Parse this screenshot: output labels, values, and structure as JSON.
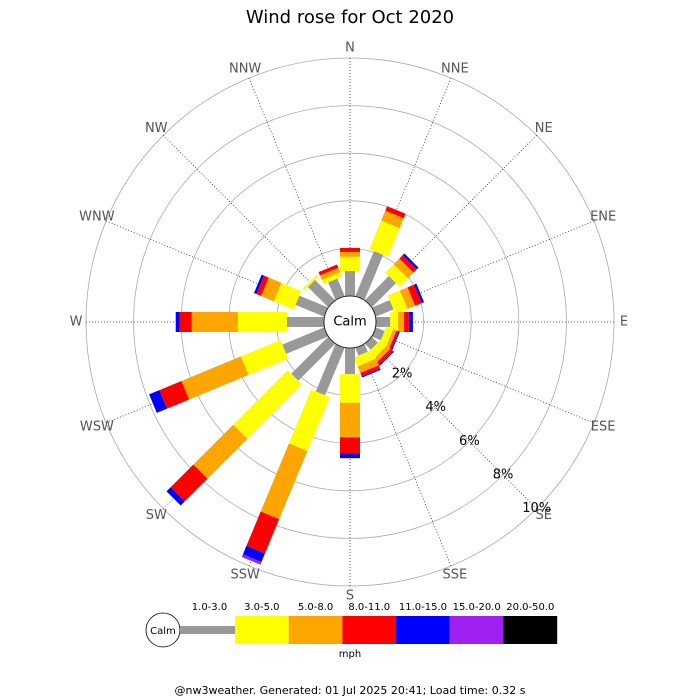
{
  "chart_data": {
    "type": "windrose",
    "title": "Wind rose for Oct 2020",
    "categories": [
      "N",
      "NNE",
      "NE",
      "ENE",
      "E",
      "ESE",
      "SE",
      "SSE",
      "S",
      "SSW",
      "SW",
      "WSW",
      "W",
      "WNW",
      "NW",
      "NNW"
    ],
    "calm_label": "Calm",
    "units": "mph",
    "footer": "@nw3weather. Generated: 01 Jul 2025 20:41; Load time: 0.32 s",
    "rlim": [
      0,
      10
    ],
    "rticks": [
      {
        "value": 2,
        "label": "2%"
      },
      {
        "value": 4,
        "label": "4%"
      },
      {
        "value": 6,
        "label": "6%"
      },
      {
        "value": 8,
        "label": "8%"
      },
      {
        "value": 10,
        "label": "10%"
      }
    ],
    "series": [
      {
        "name": "1.0-3.0",
        "color": "#999999",
        "values": [
          1.05,
          2.05,
          1.43,
          0.8,
          0.6,
          0.4,
          0.35,
          0.35,
          1.1,
          2.15,
          2.19,
          1.9,
          1.56,
          1.3,
          1.2,
          0.8
        ]
      },
      {
        "name": "3.0-5.0",
        "color": "#ffff00",
        "values": [
          0.6,
          1.3,
          0.5,
          0.55,
          0.33,
          0.3,
          0.35,
          0.4,
          1.2,
          2.45,
          3.24,
          1.8,
          2.06,
          0.9,
          0.1,
          0.2
        ]
      },
      {
        "name": "5.0-8.0",
        "color": "#ffa500",
        "values": [
          0.2,
          0.45,
          0.33,
          0.35,
          0.25,
          0.15,
          0.2,
          0.3,
          1.45,
          3.1,
          2.37,
          2.7,
          1.94,
          0.58,
          0,
          0.2
        ]
      },
      {
        "name": "8.0-11.0",
        "color": "#ff0000",
        "values": [
          0.17,
          0.2,
          0.2,
          0.3,
          0.2,
          0.1,
          0.15,
          0.15,
          0.67,
          1.56,
          1.34,
          1.0,
          0.5,
          0.21,
          0,
          0.15
        ]
      },
      {
        "name": "11.0-15.0",
        "color": "#0000ff",
        "values": [
          0,
          0,
          0.1,
          0.1,
          0.17,
          0.05,
          0.05,
          0.06,
          0.21,
          0.39,
          0.25,
          0.47,
          0.17,
          0.11,
          0,
          0
        ]
      },
      {
        "name": "15.0-20.0",
        "color": "#a020f0",
        "values": [
          0,
          0,
          0,
          0,
          0,
          0,
          0,
          0,
          0,
          0.12,
          0,
          0,
          0,
          0,
          0,
          0
        ]
      },
      {
        "name": "20.0-50.0",
        "color": "#000000",
        "values": [
          0,
          0,
          0,
          0,
          0,
          0,
          0,
          0,
          0,
          0,
          0,
          0,
          0,
          0,
          0,
          0
        ]
      }
    ]
  }
}
